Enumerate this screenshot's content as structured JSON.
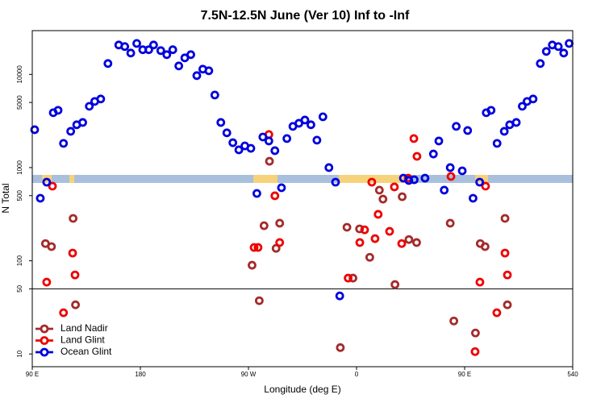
{
  "chart_data": {
    "type": "scatter",
    "title": "7.5N-12.5N June (Ver 10)   Inf to -Inf",
    "xlabel": "Longitude (deg E)",
    "ylabel": "N Total",
    "xlim": [
      90,
      540
    ],
    "xticks": [
      {
        "value": 90,
        "label": "90 E"
      },
      180,
      {
        "value": 270,
        "label": "90 W"
      },
      {
        "value": 360,
        "label": "0"
      },
      {
        "value": 450,
        "label": "90 E"
      },
      540
    ],
    "ylim": [
      7.3,
      29500
    ],
    "yscale": "log",
    "yticks": [
      10,
      50,
      100,
      500,
      1000,
      5000,
      10000
    ],
    "reference_line": 50,
    "legend": "lower left",
    "series": [
      {
        "name": "Land Nadir",
        "color": "#a52a2a",
        "x": [
          101,
          106,
          124,
          126,
          273,
          279,
          283,
          287.5,
          293,
          296,
          346.5,
          352,
          357,
          362.5,
          371,
          379,
          382,
          392,
          398,
          403.6,
          410,
          438,
          441,
          459,
          463,
          467,
          483.6,
          485.6
        ],
        "values": [
          153,
          142,
          285,
          33.7,
          89.6,
          37.3,
          238,
          1170,
          136,
          253,
          11.7,
          229,
          65.2,
          220,
          109,
          573,
          459,
          55.6,
          487,
          169,
          157,
          253,
          22.6,
          16.8,
          153,
          142,
          285,
          33.7
        ]
      },
      {
        "name": "Land Glint",
        "color": "#ee0000",
        "x": [
          106.8,
          102,
          116,
          123.6,
          125.6,
          274.7,
          278,
          287,
          292,
          296,
          353,
          362.7,
          366.7,
          372.7,
          375.4,
          378,
          387.5,
          391.5,
          397.6,
          403,
          407.7,
          410.3,
          438.6,
          458.7,
          462.7,
          467.4,
          476.8,
          483.6,
          485.6
        ],
        "values": [
          632,
          59,
          27.7,
          121,
          70.5,
          139,
          139,
          2265,
          498,
          157,
          65.2,
          157,
          215,
          698,
          173,
          315,
          207,
          620,
          153,
          771,
          2050,
          1321,
          804,
          10.6,
          59,
          632,
          27.7,
          121,
          70.5
        ]
      },
      {
        "name": "Ocean Glint",
        "color": "#0000dd",
        "x": [
          92,
          96.7,
          102,
          107.5,
          111.5,
          116,
          122,
          127,
          132,
          137.5,
          142,
          147,
          153,
          162,
          167,
          172,
          177,
          182,
          187,
          191,
          197,
          202,
          207,
          212,
          217,
          222,
          227,
          232,
          237,
          242,
          247,
          252,
          257,
          262,
          267,
          272,
          277,
          282,
          287,
          292,
          297.5,
          302,
          307,
          312,
          317,
          322,
          327,
          332,
          337,
          342.5,
          346,
          399,
          403.5,
          408,
          417,
          424,
          428.5,
          433,
          438,
          443,
          448,
          452.5,
          457,
          462.5,
          468,
          472,
          477,
          483,
          487.5,
          493,
          498,
          502,
          507,
          513,
          518,
          523,
          528,
          532.5,
          537
        ],
        "values": [
          2550,
          469,
          698,
          3880,
          4120,
          1820,
          2450,
          2880,
          3050,
          4550,
          5130,
          5450,
          13090,
          20700,
          19900,
          16950,
          21500,
          18400,
          18400,
          20700,
          18000,
          16300,
          18400,
          12330,
          15040,
          16300,
          9710,
          11380,
          10940,
          6010,
          3050,
          2360,
          1850,
          1550,
          1710,
          1610,
          528,
          2130,
          1930,
          1520,
          608,
          2050,
          2770,
          2990,
          3240,
          2880,
          1970,
          3510,
          1000,
          698,
          42,
          771,
          727,
          741,
          771,
          1400,
          1930,
          573,
          1000,
          2770,
          923,
          2500,
          469,
          698,
          3880,
          4120,
          1820,
          2450,
          2880,
          3050,
          4550,
          5130,
          5450,
          13090,
          17650,
          20700,
          19900,
          16950,
          21500
        ]
      }
    ]
  }
}
